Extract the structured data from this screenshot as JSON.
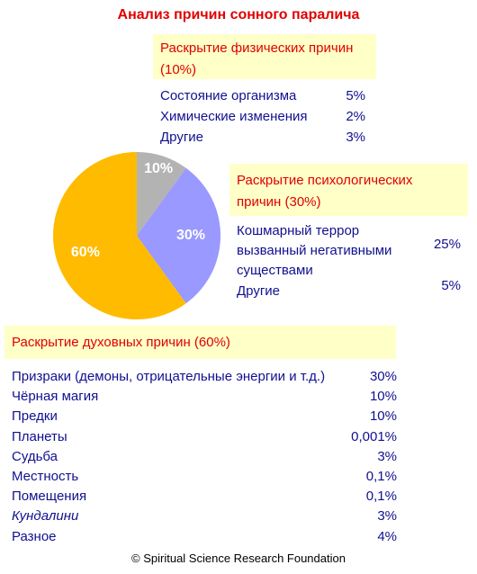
{
  "title": "Анализ причин сонного паралича",
  "chart_data": {
    "type": "pie",
    "values": [
      10,
      30,
      60
    ],
    "value_labels": [
      "10%",
      "30%",
      "60%"
    ],
    "colors": [
      "#b3b3b3",
      "#9999ff",
      "#ffbb00"
    ]
  },
  "physical": {
    "heading": [
      "Раскрытие физических причин",
      "(10%)"
    ],
    "items": [
      {
        "label": [
          "Состояние организма"
        ],
        "value": "5%"
      },
      {
        "label": [
          "Химические изменения"
        ],
        "value": "2%"
      },
      {
        "label": [
          "Другие"
        ],
        "value": "3%"
      }
    ]
  },
  "psychological": {
    "heading": [
      "Раскрытие психологических",
      "причин (30%)"
    ],
    "items": [
      {
        "label": [
          "Кошмарный террор",
          "вызванный негативными",
          "существами"
        ],
        "value": "25%"
      },
      {
        "label": [
          "Другие"
        ],
        "value": "5%"
      }
    ]
  },
  "spiritual": {
    "heading": [
      "Раскрытие духовных причин (60%)"
    ],
    "items": [
      {
        "label": [
          "Призраки (демоны, отрицательные энергии и т.д.)"
        ],
        "value": "30%"
      },
      {
        "label": [
          "Чёрная магия"
        ],
        "value": "10%"
      },
      {
        "label": [
          "Предки"
        ],
        "value": "10%"
      },
      {
        "label": [
          "Планеты"
        ],
        "value": "0,001%"
      },
      {
        "label": [
          "Судьба"
        ],
        "value": "3%"
      },
      {
        "label": [
          "Местность"
        ],
        "value": "0,1%"
      },
      {
        "label": [
          "Помещения"
        ],
        "value": "0,1%"
      },
      {
        "label": [
          "Кундалини"
        ],
        "value": "3%"
      },
      {
        "label": [
          "Разное"
        ],
        "value": "4%"
      }
    ]
  },
  "footer": "© Spiritual Science Research Foundation"
}
